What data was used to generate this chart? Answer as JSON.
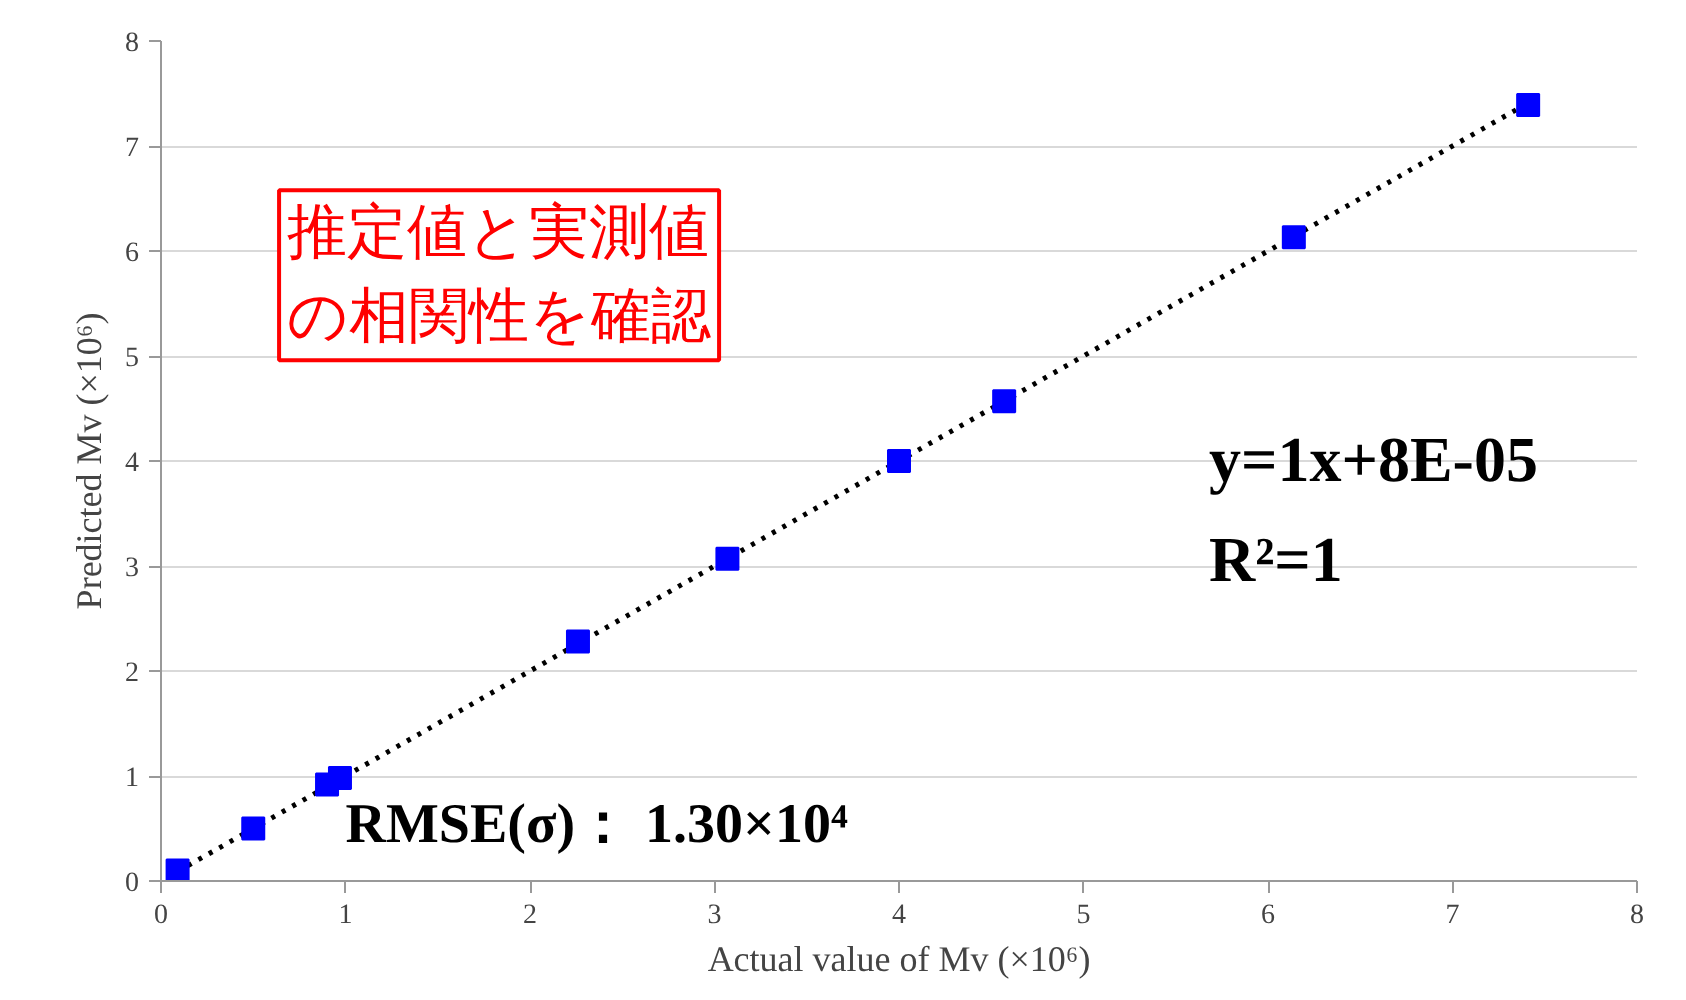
{
  "chart_data": {
    "type": "scatter",
    "xlabel": "Actual value of Mv (×10⁶)",
    "ylabel": "Predicted Mv (×10⁶)",
    "xlim": [
      0,
      8
    ],
    "ylim": [
      0,
      8
    ],
    "xticks": [
      0,
      1,
      2,
      3,
      4,
      5,
      6,
      7,
      8
    ],
    "yticks": [
      0,
      1,
      2,
      3,
      4,
      5,
      6,
      7,
      8
    ],
    "grid": "y",
    "series": [
      {
        "color": "#0000ff",
        "marker": "square",
        "x": [
          0.09,
          0.5,
          0.9,
          0.97,
          2.26,
          3.07,
          4.0,
          4.57,
          6.14,
          7.41
        ],
        "values": [
          0.1,
          0.5,
          0.92,
          0.98,
          2.28,
          3.07,
          4.0,
          4.57,
          6.13,
          7.39
        ]
      },
      {
        "type": "line",
        "color": "#000000",
        "line_style": "dotted",
        "marker": "none",
        "x": [
          0.09,
          7.41
        ],
        "values": [
          0.09,
          7.41
        ]
      }
    ],
    "annotations": [
      "推定値と実測値の相関性を確認",
      "y=1x+8E-05",
      "R²=1",
      "RMSE(σ)： 1.30×10⁴"
    ]
  }
}
